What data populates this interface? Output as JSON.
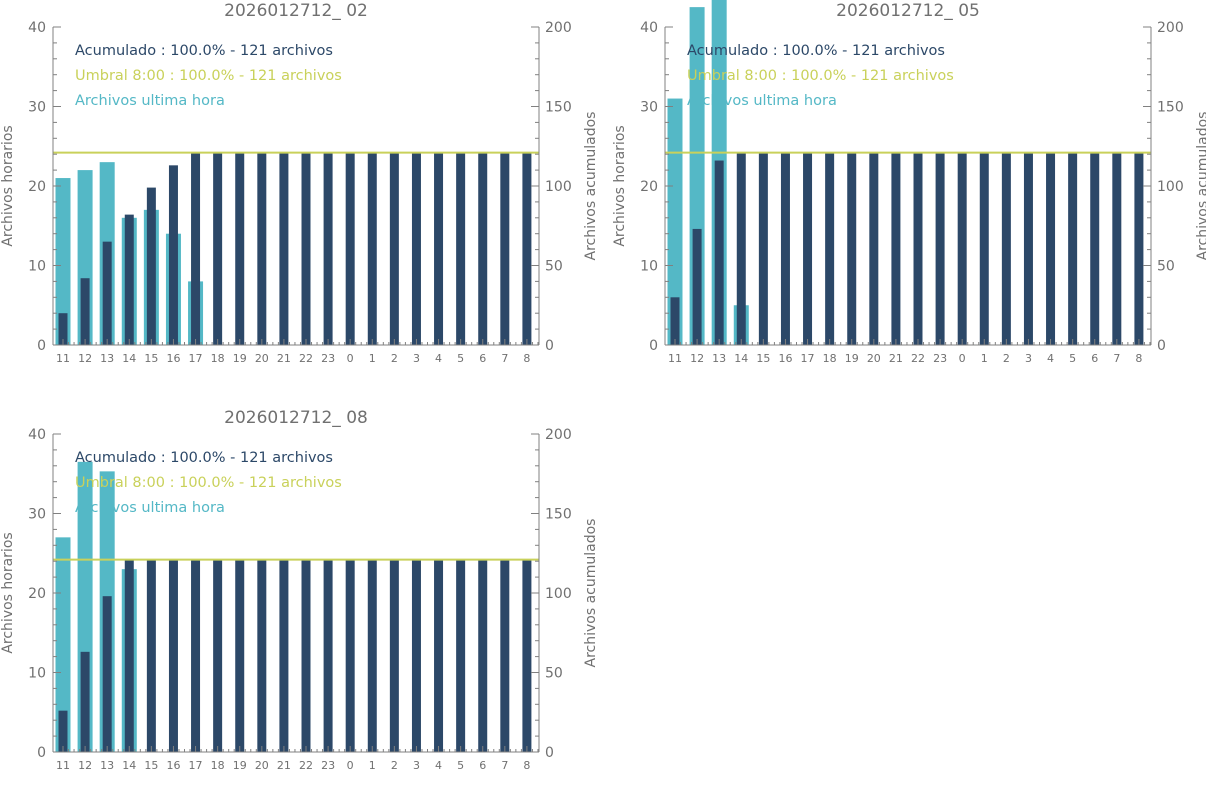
{
  "colors": {
    "hourly": "#54b8c6",
    "cumulative": "#2c4868",
    "threshold": "#c9d15a",
    "axis": "#808080",
    "text": "#707070"
  },
  "shared": {
    "ylabel_left": "Archivos horarios",
    "ylabel_right": "Archivos acumulados",
    "legend_cumulative": "Acumulado : 100.0% - 121 archivos",
    "legend_threshold": "Umbral 8:00 : 100.0% - 121 archivos",
    "legend_hourly": "Archivos ultima hora"
  },
  "chart_data": [
    {
      "type": "bar",
      "title": "2026012712_ 02",
      "categories": [
        "11",
        "12",
        "13",
        "14",
        "15",
        "16",
        "17",
        "18",
        "19",
        "20",
        "21",
        "22",
        "23",
        "0",
        "1",
        "2",
        "3",
        "4",
        "5",
        "6",
        "7",
        "8"
      ],
      "ylim": [
        0,
        40
      ],
      "y2lim": [
        0,
        200
      ],
      "yticks": [
        0,
        10,
        20,
        30,
        40
      ],
      "y2ticks": [
        0,
        50,
        100,
        150,
        200
      ],
      "threshold": 121,
      "series": [
        {
          "name": "Archivos ultima hora",
          "axis": "left",
          "values": [
            21,
            22,
            23,
            16,
            17,
            14,
            8,
            0,
            0,
            0,
            0,
            0,
            0,
            0,
            0,
            0,
            0,
            0,
            0,
            0,
            0,
            0
          ]
        },
        {
          "name": "Acumulado",
          "axis": "right",
          "values": [
            20,
            42,
            65,
            82,
            99,
            113,
            121,
            121,
            121,
            121,
            121,
            121,
            121,
            121,
            121,
            121,
            121,
            121,
            121,
            121,
            121,
            121
          ]
        }
      ]
    },
    {
      "type": "bar",
      "title": "2026012712_ 05",
      "categories": [
        "11",
        "12",
        "13",
        "14",
        "15",
        "16",
        "17",
        "18",
        "19",
        "20",
        "21",
        "22",
        "23",
        "0",
        "1",
        "2",
        "3",
        "4",
        "5",
        "6",
        "7",
        "8"
      ],
      "ylim": [
        0,
        40
      ],
      "y2lim": [
        0,
        200
      ],
      "yticks": [
        0,
        10,
        20,
        30,
        40
      ],
      "y2ticks": [
        0,
        50,
        100,
        150,
        200
      ],
      "threshold": 121,
      "series": [
        {
          "name": "Archivos ultima hora",
          "axis": "left",
          "values": [
            31,
            42.5,
            45,
            5,
            0,
            0,
            0,
            0,
            0,
            0,
            0,
            0,
            0,
            0,
            0,
            0,
            0,
            0,
            0,
            0,
            0,
            0
          ]
        },
        {
          "name": "Acumulado",
          "axis": "right",
          "values": [
            30,
            73,
            116,
            121,
            121,
            121,
            121,
            121,
            121,
            121,
            121,
            121,
            121,
            121,
            121,
            121,
            121,
            121,
            121,
            121,
            121,
            121
          ]
        }
      ]
    },
    {
      "type": "bar",
      "title": "2026012712_ 08",
      "categories": [
        "11",
        "12",
        "13",
        "14",
        "15",
        "16",
        "17",
        "18",
        "19",
        "20",
        "21",
        "22",
        "23",
        "0",
        "1",
        "2",
        "3",
        "4",
        "5",
        "6",
        "7",
        "8"
      ],
      "ylim": [
        0,
        40
      ],
      "y2lim": [
        0,
        200
      ],
      "yticks": [
        0,
        10,
        20,
        30,
        40
      ],
      "y2ticks": [
        0,
        50,
        100,
        150,
        200
      ],
      "threshold": 121,
      "series": [
        {
          "name": "Archivos ultima hora",
          "axis": "left",
          "values": [
            27,
            36.5,
            35.3,
            23,
            0,
            0,
            0,
            0,
            0,
            0,
            0,
            0,
            0,
            0,
            0,
            0,
            0,
            0,
            0,
            0,
            0,
            0
          ]
        },
        {
          "name": "Acumulado",
          "axis": "right",
          "values": [
            26,
            63,
            98,
            121,
            121,
            121,
            121,
            121,
            121,
            121,
            121,
            121,
            121,
            121,
            121,
            121,
            121,
            121,
            121,
            121,
            121,
            121
          ]
        }
      ]
    }
  ]
}
